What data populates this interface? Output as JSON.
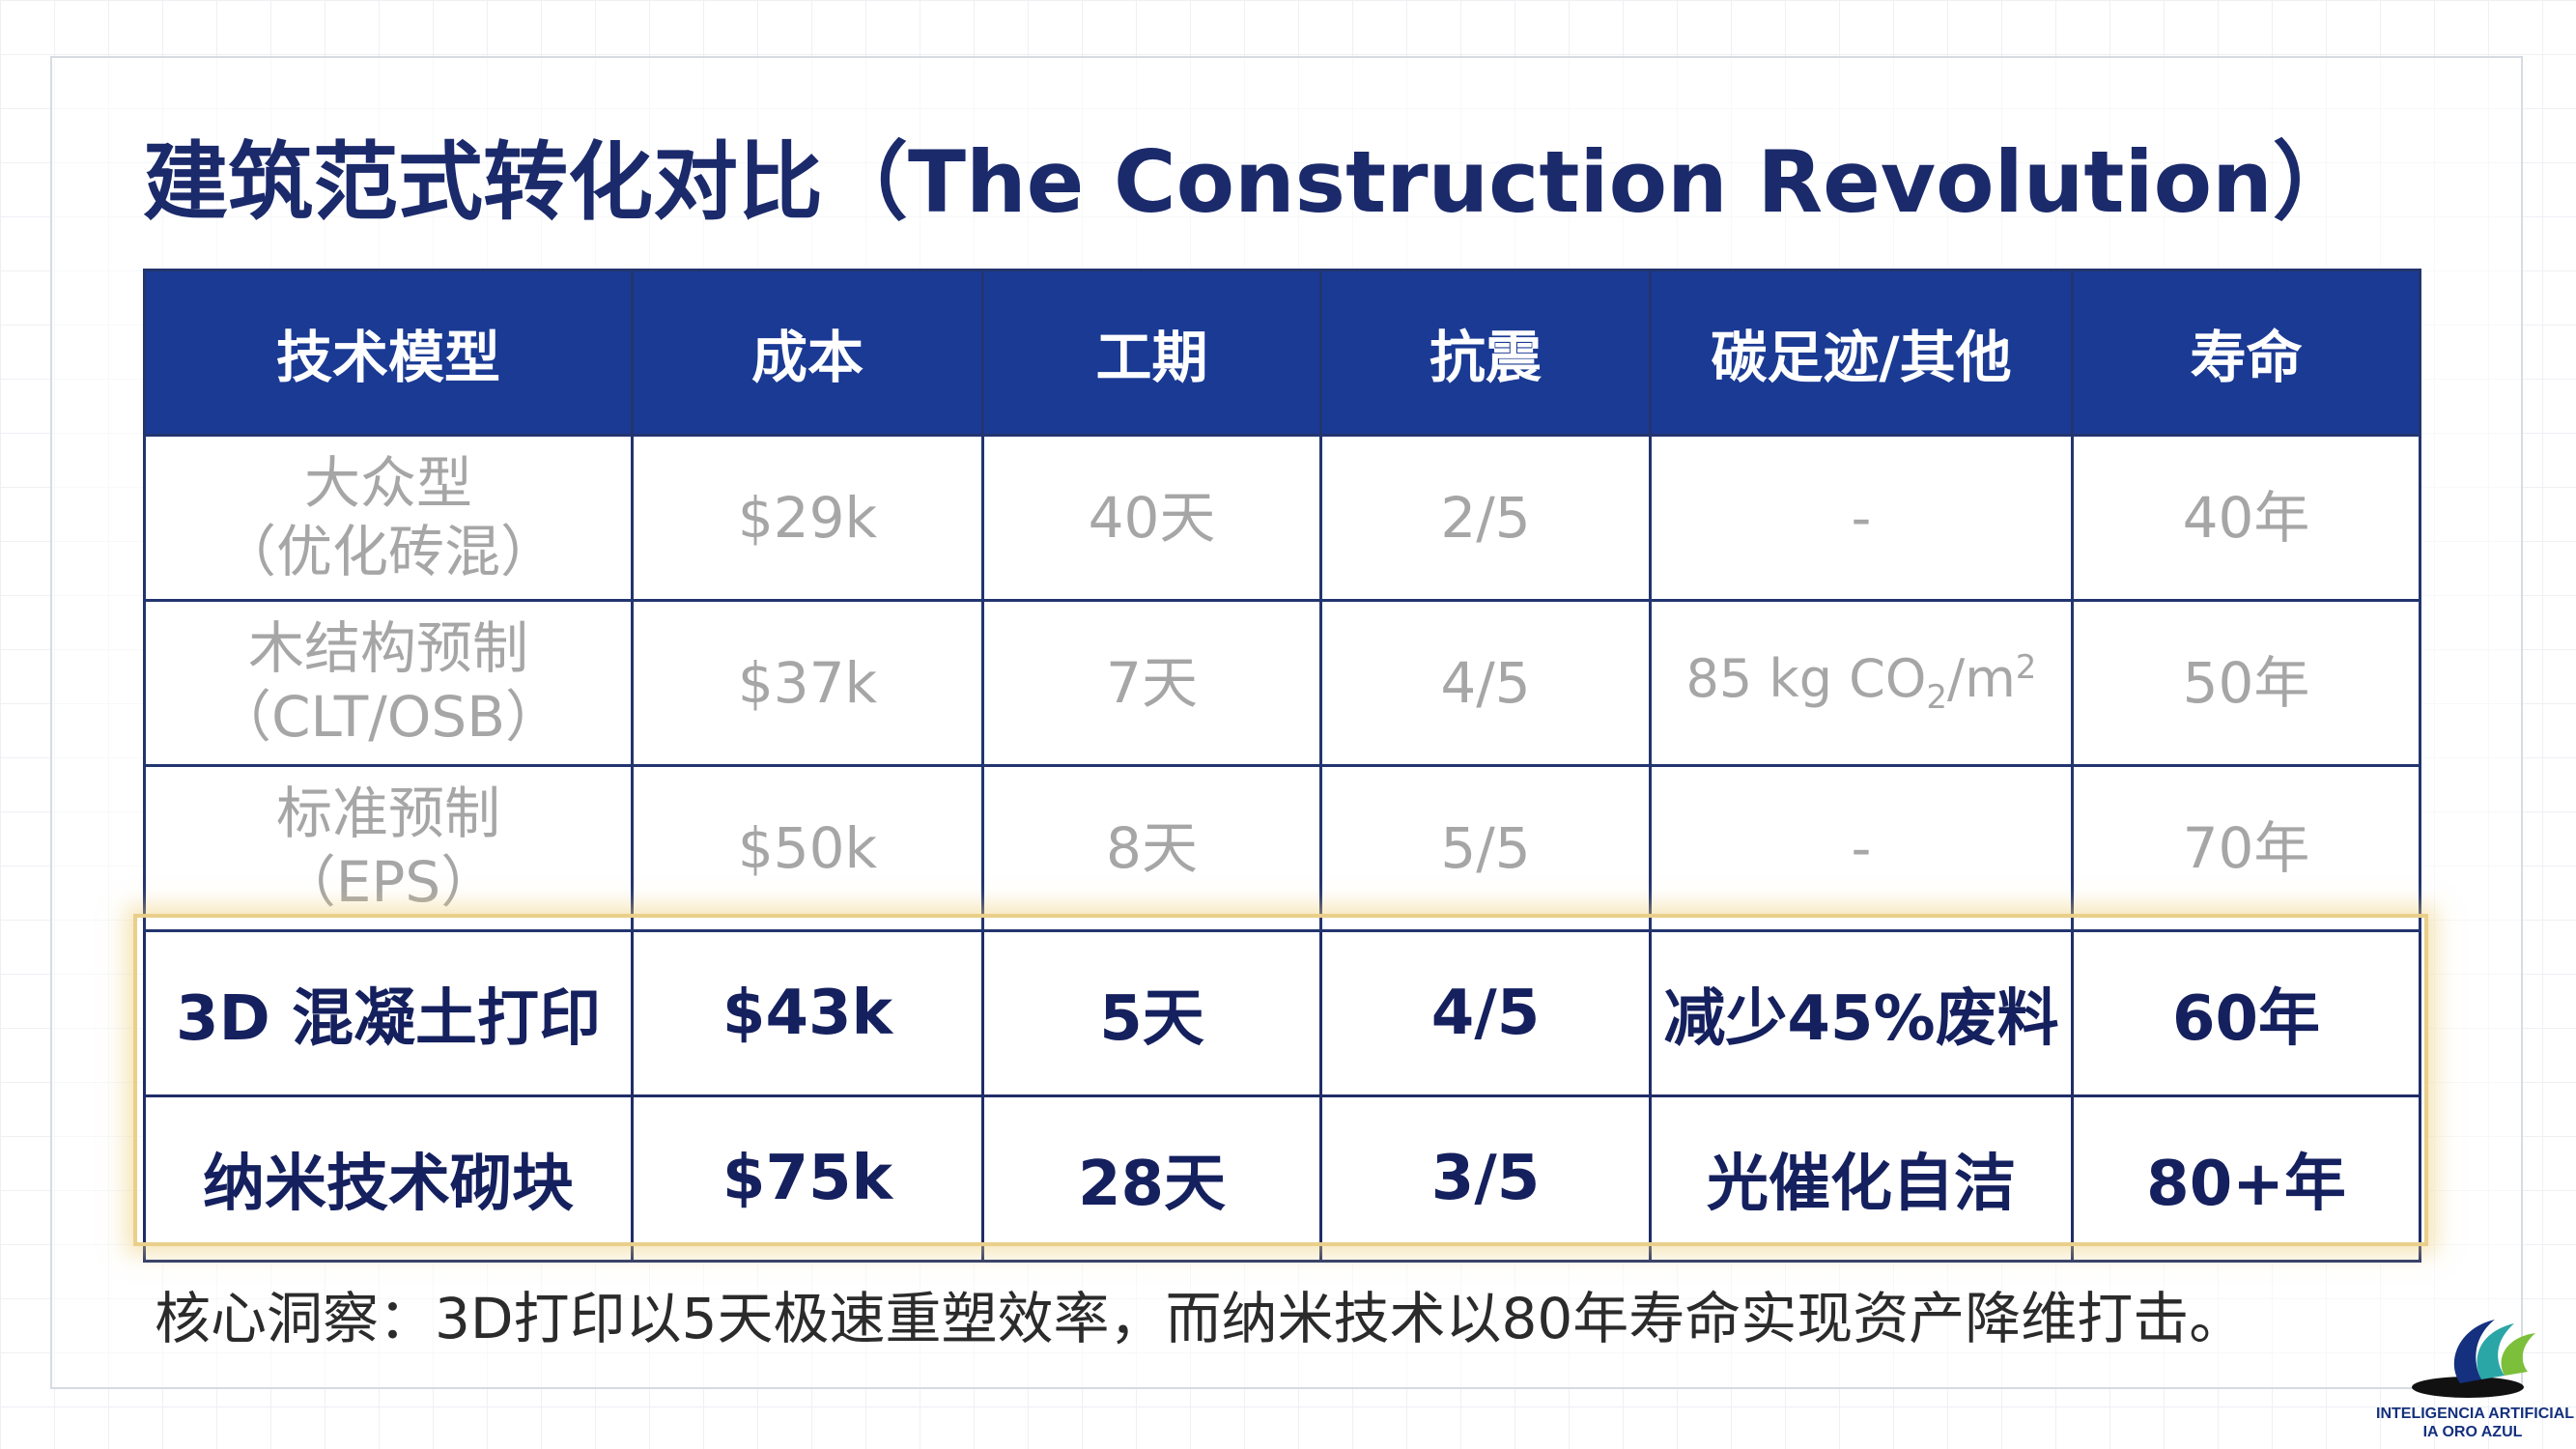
{
  "title": "建筑范式转化对比（The Construction Revolution）",
  "table": {
    "headers": [
      "技术模型",
      "成本",
      "工期",
      "抗震",
      "碳足迹/其他",
      "寿命"
    ],
    "rows": [
      {
        "model_line1": "大众型",
        "model_line2": "（优化砖混）",
        "cost": "$29k",
        "duration": "40天",
        "seismic": "2/5",
        "carbon": "-",
        "lifespan": "40年"
      },
      {
        "model_line1": "木结构预制",
        "model_line2": "（CLT/OSB）",
        "cost": "$37k",
        "duration": "7天",
        "seismic": "4/5",
        "carbon_value": "85 kg CO",
        "carbon_sub": "2",
        "carbon_unit": "/m",
        "carbon_sup": "2",
        "lifespan": "50年"
      },
      {
        "model_line1": "标准预制",
        "model_line2": "（EPS）",
        "cost": "$50k",
        "duration": "8天",
        "seismic": "5/5",
        "carbon": "-",
        "lifespan": "70年"
      },
      {
        "model": "3D 混凝土打印",
        "cost": "$43k",
        "duration": "5天",
        "seismic": "4/5",
        "carbon": "减少45%废料",
        "lifespan": "60年"
      },
      {
        "model": "纳米技术砌块",
        "cost": "$75k",
        "duration": "28天",
        "seismic": "3/5",
        "carbon": "光催化自洁",
        "lifespan": "80+年"
      }
    ]
  },
  "insight": "核心洞察：3D打印以5天极速重塑效率，而纳米技术以80年寿命实现资产降维打击。",
  "logo": {
    "line1": "INTELIGENCIA ARTIFICIAL",
    "line2": "IA ORO AZUL"
  },
  "colors": {
    "header_bg": "#1a3a94",
    "title": "#1b2a6b",
    "highlight_border": "#e9cf8a",
    "logo_blue": "#14307e",
    "logo_teal": "#2aa6a6",
    "logo_green": "#7bbf3a"
  }
}
